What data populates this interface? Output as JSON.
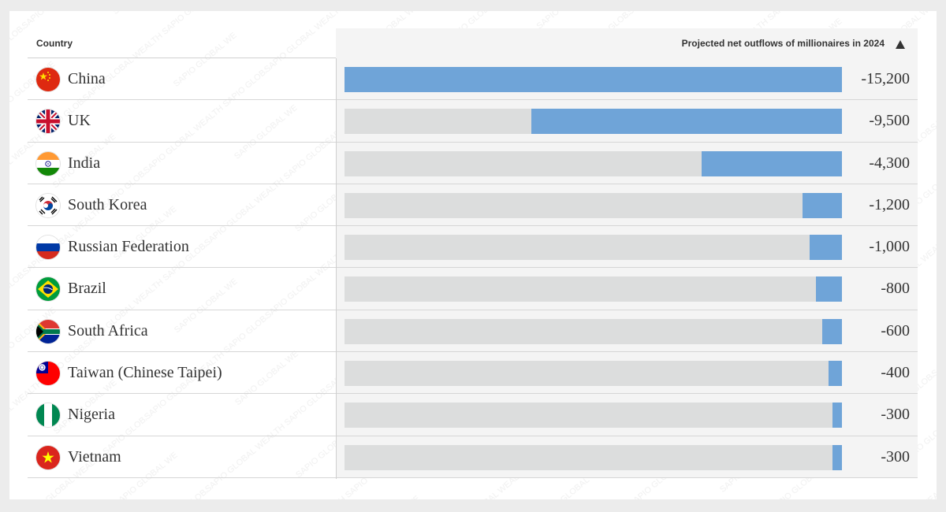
{
  "header": {
    "country_label": "Country",
    "value_label": "Projected net outflows of millionaires in 2024"
  },
  "watermark_text": "SAPIO GLOBAL WEALTH",
  "chart_data": {
    "type": "bar",
    "orientation": "horizontal",
    "xlabel": "Projected net outflows of millionaires in 2024",
    "ylabel": "Country",
    "xlim": [
      -15200,
      0
    ],
    "categories": [
      "China",
      "UK",
      "India",
      "South Korea",
      "Russian Federation",
      "Brazil",
      "South Africa",
      "Taiwan (Chinese Taipei)",
      "Nigeria",
      "Vietnam"
    ],
    "values": [
      -15200,
      -9500,
      -4300,
      -1200,
      -1000,
      -800,
      -600,
      -400,
      -300,
      -300
    ],
    "value_labels": [
      "-15,200",
      "-9,500",
      "-4,300",
      "-1,200",
      "-1,000",
      "-800",
      "-600",
      "-400",
      "-300",
      "-300"
    ],
    "flag_icons": [
      "china-flag-icon",
      "uk-flag-icon",
      "india-flag-icon",
      "south-korea-flag-icon",
      "russia-flag-icon",
      "brazil-flag-icon",
      "south-africa-flag-icon",
      "taiwan-flag-icon",
      "nigeria-flag-icon",
      "vietnam-flag-icon"
    ],
    "bar_color": "#6fa4d8",
    "track_color": "#dcdddd"
  }
}
